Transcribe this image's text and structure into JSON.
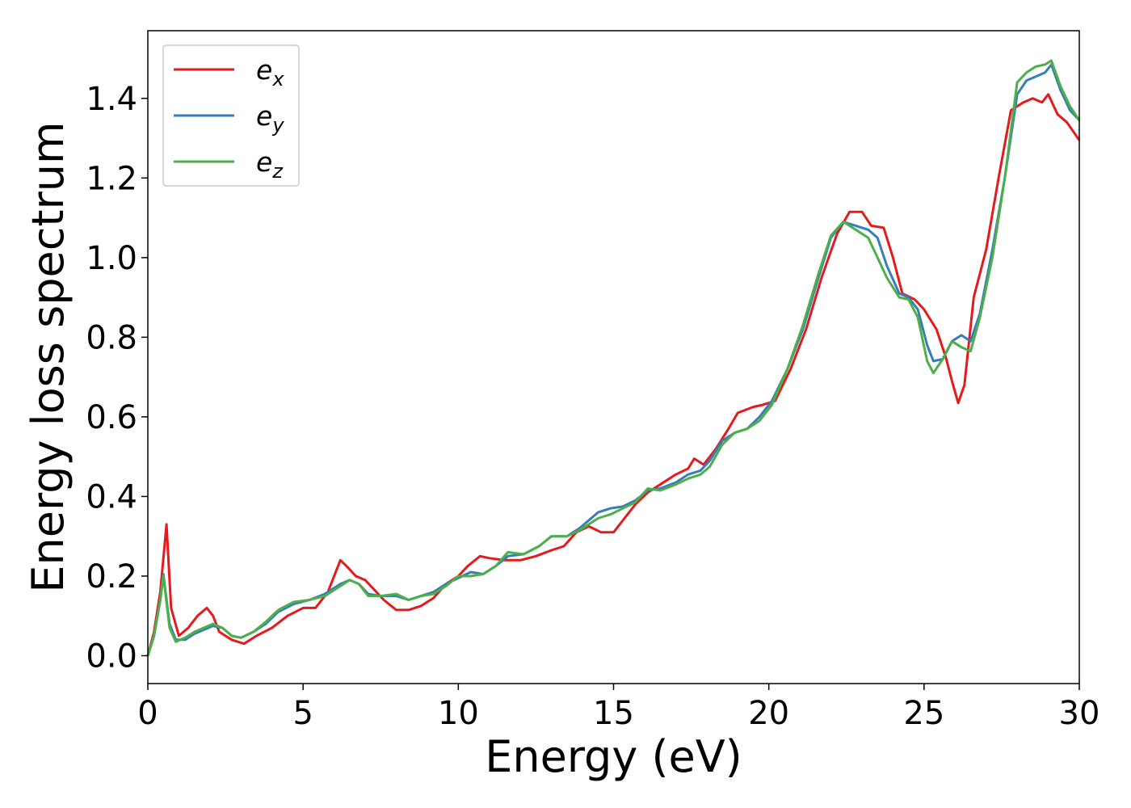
{
  "chart_data": {
    "type": "line",
    "xlabel": "Energy (eV)",
    "ylabel": "Energy loss spectrum",
    "xlim": [
      0,
      30
    ],
    "ylim": [
      -0.07,
      1.57
    ],
    "x_ticks": [
      "0",
      "5",
      "10",
      "15",
      "20",
      "25",
      "30"
    ],
    "y_ticks": [
      "0.0",
      "0.2",
      "0.4",
      "0.6",
      "0.8",
      "1.0",
      "1.2",
      "1.4"
    ],
    "grid": false,
    "legend_position": "top-left",
    "series": [
      {
        "name": "e",
        "subscript": "x",
        "color": "#e41a1c",
        "points": [
          [
            0,
            0.0
          ],
          [
            0.2,
            0.06
          ],
          [
            0.4,
            0.16
          ],
          [
            0.6,
            0.33
          ],
          [
            0.75,
            0.12
          ],
          [
            1.0,
            0.05
          ],
          [
            1.3,
            0.07
          ],
          [
            1.6,
            0.1
          ],
          [
            1.9,
            0.12
          ],
          [
            2.1,
            0.1
          ],
          [
            2.3,
            0.06
          ],
          [
            2.7,
            0.04
          ],
          [
            3.1,
            0.03
          ],
          [
            3.5,
            0.05
          ],
          [
            4.0,
            0.07
          ],
          [
            4.5,
            0.1
          ],
          [
            5.0,
            0.12
          ],
          [
            5.4,
            0.12
          ],
          [
            5.8,
            0.16
          ],
          [
            6.0,
            0.2
          ],
          [
            6.2,
            0.24
          ],
          [
            6.4,
            0.225
          ],
          [
            6.7,
            0.2
          ],
          [
            7.0,
            0.19
          ],
          [
            7.3,
            0.165
          ],
          [
            7.6,
            0.14
          ],
          [
            8.0,
            0.115
          ],
          [
            8.4,
            0.115
          ],
          [
            8.8,
            0.125
          ],
          [
            9.2,
            0.145
          ],
          [
            9.6,
            0.18
          ],
          [
            10.0,
            0.2
          ],
          [
            10.3,
            0.225
          ],
          [
            10.7,
            0.25
          ],
          [
            11.0,
            0.245
          ],
          [
            11.5,
            0.24
          ],
          [
            12.0,
            0.24
          ],
          [
            12.5,
            0.25
          ],
          [
            13.0,
            0.265
          ],
          [
            13.4,
            0.275
          ],
          [
            13.8,
            0.31
          ],
          [
            14.2,
            0.325
          ],
          [
            14.6,
            0.31
          ],
          [
            15.0,
            0.31
          ],
          [
            15.3,
            0.34
          ],
          [
            15.7,
            0.38
          ],
          [
            16.1,
            0.41
          ],
          [
            16.5,
            0.43
          ],
          [
            17.0,
            0.455
          ],
          [
            17.4,
            0.47
          ],
          [
            17.6,
            0.495
          ],
          [
            17.9,
            0.48
          ],
          [
            18.3,
            0.52
          ],
          [
            18.7,
            0.57
          ],
          [
            19.0,
            0.61
          ],
          [
            19.5,
            0.625
          ],
          [
            19.8,
            0.63
          ],
          [
            20.2,
            0.64
          ],
          [
            20.7,
            0.72
          ],
          [
            21.2,
            0.82
          ],
          [
            21.7,
            0.95
          ],
          [
            22.2,
            1.06
          ],
          [
            22.6,
            1.115
          ],
          [
            23.0,
            1.115
          ],
          [
            23.3,
            1.08
          ],
          [
            23.7,
            1.075
          ],
          [
            24.0,
            1.0
          ],
          [
            24.3,
            0.91
          ],
          [
            24.7,
            0.895
          ],
          [
            25.0,
            0.87
          ],
          [
            25.4,
            0.82
          ],
          [
            25.7,
            0.75
          ],
          [
            25.9,
            0.69
          ],
          [
            26.1,
            0.635
          ],
          [
            26.3,
            0.68
          ],
          [
            26.6,
            0.9
          ],
          [
            27.0,
            1.02
          ],
          [
            27.4,
            1.2
          ],
          [
            27.8,
            1.37
          ],
          [
            28.2,
            1.39
          ],
          [
            28.5,
            1.4
          ],
          [
            28.8,
            1.39
          ],
          [
            29.0,
            1.41
          ],
          [
            29.3,
            1.36
          ],
          [
            29.6,
            1.34
          ],
          [
            30.0,
            1.295
          ]
        ]
      },
      {
        "name": "e",
        "subscript": "y",
        "color": "#377eb8",
        "points": [
          [
            0,
            0.0
          ],
          [
            0.2,
            0.05
          ],
          [
            0.4,
            0.14
          ],
          [
            0.5,
            0.205
          ],
          [
            0.7,
            0.08
          ],
          [
            0.9,
            0.04
          ],
          [
            1.2,
            0.04
          ],
          [
            1.5,
            0.055
          ],
          [
            1.8,
            0.065
          ],
          [
            2.1,
            0.075
          ],
          [
            2.4,
            0.07
          ],
          [
            2.7,
            0.05
          ],
          [
            3.0,
            0.045
          ],
          [
            3.4,
            0.06
          ],
          [
            3.8,
            0.08
          ],
          [
            4.2,
            0.11
          ],
          [
            4.7,
            0.13
          ],
          [
            5.2,
            0.14
          ],
          [
            5.7,
            0.155
          ],
          [
            6.2,
            0.18
          ],
          [
            6.5,
            0.19
          ],
          [
            6.8,
            0.18
          ],
          [
            7.1,
            0.155
          ],
          [
            7.5,
            0.15
          ],
          [
            8.0,
            0.15
          ],
          [
            8.4,
            0.14
          ],
          [
            8.8,
            0.15
          ],
          [
            9.2,
            0.16
          ],
          [
            9.6,
            0.18
          ],
          [
            10.0,
            0.195
          ],
          [
            10.4,
            0.21
          ],
          [
            10.8,
            0.205
          ],
          [
            11.2,
            0.225
          ],
          [
            11.6,
            0.25
          ],
          [
            12.1,
            0.255
          ],
          [
            12.6,
            0.275
          ],
          [
            13.0,
            0.3
          ],
          [
            13.5,
            0.3
          ],
          [
            13.9,
            0.32
          ],
          [
            14.2,
            0.34
          ],
          [
            14.5,
            0.36
          ],
          [
            14.9,
            0.37
          ],
          [
            15.3,
            0.375
          ],
          [
            15.7,
            0.39
          ],
          [
            16.1,
            0.415
          ],
          [
            16.5,
            0.42
          ],
          [
            17.0,
            0.435
          ],
          [
            17.4,
            0.455
          ],
          [
            17.8,
            0.465
          ],
          [
            18.1,
            0.49
          ],
          [
            18.5,
            0.54
          ],
          [
            18.9,
            0.56
          ],
          [
            19.3,
            0.57
          ],
          [
            19.7,
            0.6
          ],
          [
            20.1,
            0.64
          ],
          [
            20.6,
            0.72
          ],
          [
            21.1,
            0.82
          ],
          [
            21.6,
            0.95
          ],
          [
            22.0,
            1.05
          ],
          [
            22.4,
            1.09
          ],
          [
            22.8,
            1.08
          ],
          [
            23.2,
            1.07
          ],
          [
            23.5,
            1.05
          ],
          [
            23.8,
            0.98
          ],
          [
            24.2,
            0.91
          ],
          [
            24.5,
            0.9
          ],
          [
            24.8,
            0.87
          ],
          [
            25.1,
            0.78
          ],
          [
            25.3,
            0.74
          ],
          [
            25.6,
            0.745
          ],
          [
            25.9,
            0.79
          ],
          [
            26.2,
            0.805
          ],
          [
            26.5,
            0.79
          ],
          [
            26.8,
            0.86
          ],
          [
            27.2,
            1.02
          ],
          [
            27.6,
            1.2
          ],
          [
            28.0,
            1.41
          ],
          [
            28.3,
            1.445
          ],
          [
            28.6,
            1.455
          ],
          [
            28.9,
            1.465
          ],
          [
            29.1,
            1.485
          ],
          [
            29.4,
            1.42
          ],
          [
            29.7,
            1.37
          ],
          [
            30.0,
            1.345
          ]
        ]
      },
      {
        "name": "e",
        "subscript": "z",
        "color": "#4daf4a",
        "points": [
          [
            0,
            0.0
          ],
          [
            0.2,
            0.05
          ],
          [
            0.4,
            0.14
          ],
          [
            0.5,
            0.2
          ],
          [
            0.7,
            0.07
          ],
          [
            0.9,
            0.035
          ],
          [
            1.2,
            0.045
          ],
          [
            1.5,
            0.06
          ],
          [
            1.8,
            0.07
          ],
          [
            2.1,
            0.08
          ],
          [
            2.4,
            0.07
          ],
          [
            2.7,
            0.05
          ],
          [
            3.0,
            0.045
          ],
          [
            3.4,
            0.06
          ],
          [
            3.8,
            0.085
          ],
          [
            4.2,
            0.115
          ],
          [
            4.7,
            0.135
          ],
          [
            5.2,
            0.14
          ],
          [
            5.7,
            0.15
          ],
          [
            6.2,
            0.175
          ],
          [
            6.5,
            0.19
          ],
          [
            6.8,
            0.18
          ],
          [
            7.1,
            0.15
          ],
          [
            7.5,
            0.15
          ],
          [
            8.0,
            0.155
          ],
          [
            8.4,
            0.14
          ],
          [
            8.8,
            0.15
          ],
          [
            9.2,
            0.155
          ],
          [
            9.6,
            0.175
          ],
          [
            10.0,
            0.2
          ],
          [
            10.4,
            0.2
          ],
          [
            10.8,
            0.205
          ],
          [
            11.2,
            0.225
          ],
          [
            11.6,
            0.26
          ],
          [
            12.1,
            0.255
          ],
          [
            12.6,
            0.275
          ],
          [
            13.0,
            0.3
          ],
          [
            13.5,
            0.3
          ],
          [
            13.9,
            0.315
          ],
          [
            14.2,
            0.33
          ],
          [
            14.5,
            0.345
          ],
          [
            14.9,
            0.355
          ],
          [
            15.3,
            0.37
          ],
          [
            15.7,
            0.385
          ],
          [
            16.1,
            0.42
          ],
          [
            16.5,
            0.415
          ],
          [
            17.0,
            0.43
          ],
          [
            17.4,
            0.445
          ],
          [
            17.8,
            0.455
          ],
          [
            18.1,
            0.475
          ],
          [
            18.5,
            0.53
          ],
          [
            18.9,
            0.56
          ],
          [
            19.3,
            0.57
          ],
          [
            19.7,
            0.59
          ],
          [
            20.1,
            0.63
          ],
          [
            20.6,
            0.72
          ],
          [
            21.1,
            0.83
          ],
          [
            21.6,
            0.96
          ],
          [
            22.0,
            1.055
          ],
          [
            22.4,
            1.09
          ],
          [
            22.8,
            1.07
          ],
          [
            23.2,
            1.05
          ],
          [
            23.5,
            1.0
          ],
          [
            23.8,
            0.95
          ],
          [
            24.2,
            0.9
          ],
          [
            24.5,
            0.895
          ],
          [
            24.8,
            0.85
          ],
          [
            25.1,
            0.74
          ],
          [
            25.3,
            0.71
          ],
          [
            25.6,
            0.745
          ],
          [
            25.9,
            0.79
          ],
          [
            26.2,
            0.775
          ],
          [
            26.5,
            0.765
          ],
          [
            26.8,
            0.85
          ],
          [
            27.2,
            1.0
          ],
          [
            27.6,
            1.2
          ],
          [
            28.0,
            1.44
          ],
          [
            28.3,
            1.465
          ],
          [
            28.6,
            1.48
          ],
          [
            28.9,
            1.485
          ],
          [
            29.1,
            1.495
          ],
          [
            29.4,
            1.43
          ],
          [
            29.7,
            1.38
          ],
          [
            30.0,
            1.345
          ]
        ]
      }
    ]
  }
}
